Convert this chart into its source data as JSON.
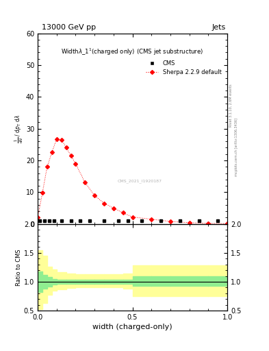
{
  "title_top": "13000 GeV pp",
  "title_right": "Jets",
  "plot_title": "Widthλ_1¹(charged only) (CMS jet substructure)",
  "cms_label": "CMS",
  "sherpa_label": "Sherpa 2.2.9 default",
  "ylabel_main_lines": [
    "mathrm d²N",
    "mathrm d p_T mathrm d lambda"
  ],
  "ylabel_ratio": "Ratio to CMS",
  "xlabel": "width (charged-only)",
  "right_label1": "Rivet 3.1.10, 2.6M events",
  "right_label2": "mcplots.cern.ch [arXiv:1306.3436]",
  "watermark": "CMS_2021_I1920187",
  "ylim_main": [
    0,
    60
  ],
  "ylim_ratio": [
    0.5,
    2.0
  ],
  "xlim": [
    0.0,
    1.0
  ],
  "sherpa_x": [
    0.0,
    0.025,
    0.05,
    0.075,
    0.1,
    0.125,
    0.15,
    0.175,
    0.2,
    0.25,
    0.3,
    0.35,
    0.4,
    0.45,
    0.5,
    0.6,
    0.7,
    0.8,
    0.9,
    1.0
  ],
  "sherpa_y": [
    2.0,
    9.8,
    18.0,
    22.5,
    26.8,
    26.5,
    24.2,
    21.5,
    19.0,
    13.0,
    9.0,
    6.5,
    5.0,
    3.5,
    2.2,
    1.5,
    0.8,
    0.4,
    0.2,
    0.1
  ],
  "cms_x": [
    0.0125,
    0.0375,
    0.0625,
    0.0875,
    0.125,
    0.175,
    0.225,
    0.275,
    0.35,
    0.425,
    0.475,
    0.55,
    0.65,
    0.75,
    0.85,
    0.95
  ],
  "cms_y": [
    1.0,
    1.0,
    1.0,
    1.0,
    1.0,
    1.0,
    1.0,
    1.0,
    1.0,
    1.0,
    1.0,
    1.0,
    1.0,
    1.0,
    1.0,
    1.0
  ],
  "ratio_bins": [
    0.0,
    0.025,
    0.05,
    0.075,
    0.1,
    0.15,
    0.2,
    0.25,
    0.3,
    0.35,
    0.4,
    0.45,
    0.5,
    0.6,
    0.7,
    0.8,
    0.9,
    1.0
  ],
  "ratio_green_lo": [
    0.82,
    0.88,
    0.92,
    0.95,
    0.96,
    0.965,
    0.97,
    0.97,
    0.97,
    0.97,
    0.97,
    0.965,
    0.93,
    0.93,
    0.93,
    0.93,
    0.93
  ],
  "ratio_green_hi": [
    1.18,
    1.12,
    1.08,
    1.05,
    1.04,
    1.035,
    1.03,
    1.03,
    1.03,
    1.03,
    1.03,
    1.035,
    1.1,
    1.1,
    1.1,
    1.1,
    1.1
  ],
  "ratio_yellow_lo": [
    0.53,
    0.63,
    0.77,
    0.84,
    0.87,
    0.89,
    0.9,
    0.9,
    0.9,
    0.9,
    0.9,
    0.88,
    0.75,
    0.75,
    0.75,
    0.75,
    0.75
  ],
  "ratio_yellow_hi": [
    1.55,
    1.45,
    1.26,
    1.21,
    1.17,
    1.14,
    1.13,
    1.13,
    1.13,
    1.13,
    1.13,
    1.14,
    1.28,
    1.28,
    1.28,
    1.28,
    1.28
  ],
  "cms_color": "black",
  "sherpa_color": "red",
  "green_color": "#90EE90",
  "yellow_color": "#FFFF99",
  "background_color": "white"
}
